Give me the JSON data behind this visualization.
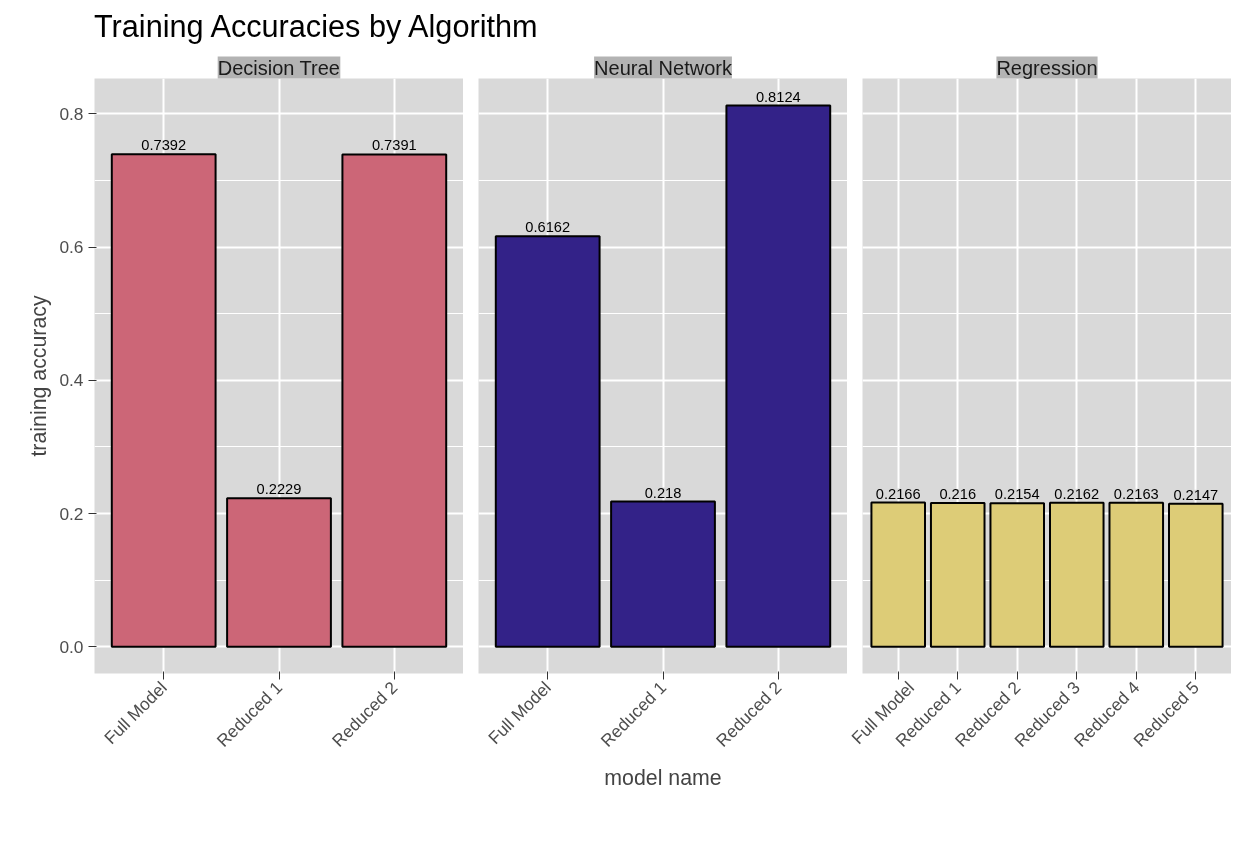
{
  "chart_data": [
    {
      "type": "bar",
      "title": "Training Accuracies by Algorithm",
      "subtitle": "Decision Tree",
      "ylabel": "training accuracy",
      "categories": [
        "Full Model",
        "Reduced 1",
        "Reduced 2"
      ],
      "values": [
        0.7392,
        0.2229,
        0.7391
      ],
      "color": "#cc6677",
      "ylim": [
        -0.04,
        0.853
      ],
      "yticks": [
        {
          "value": 0,
          "label": "0.0"
        },
        {
          "value": 0.2,
          "label": "0.2"
        },
        {
          "value": 0.4,
          "label": "0.4"
        },
        {
          "value": 0.6,
          "label": "0.6"
        },
        {
          "value": 0.8,
          "label": "0.8"
        }
      ],
      "grid": true,
      "data_labels": true
    },
    {
      "type": "bar",
      "subtitle": "Neural Network",
      "xlabel": "model name",
      "categories": [
        "Full Model",
        "Reduced 1",
        "Reduced 2"
      ],
      "values": [
        0.6162,
        0.218,
        0.8124
      ],
      "color": "#332288",
      "ylim": [
        -0.04,
        0.853
      ],
      "yticks": [
        0,
        0.2,
        0.4,
        0.6,
        0.8
      ],
      "grid": true,
      "data_labels": true,
      "tick_labels": "x"
    },
    {
      "type": "bar",
      "subtitle": "Regression",
      "categories": [
        "Full Model",
        "Reduced 1",
        "Reduced 2",
        "Reduced 3",
        "Reduced 4",
        "Reduced 5"
      ],
      "values": [
        0.2166,
        0.216,
        0.2154,
        0.2162,
        0.2163,
        0.2147
      ],
      "color": "#ddcc77",
      "ylim": [
        -0.04,
        0.853
      ],
      "yticks": [
        0,
        0.2,
        0.4,
        0.6,
        0.8
      ],
      "grid": true,
      "data_labels": true,
      "tick_labels": "x"
    }
  ]
}
